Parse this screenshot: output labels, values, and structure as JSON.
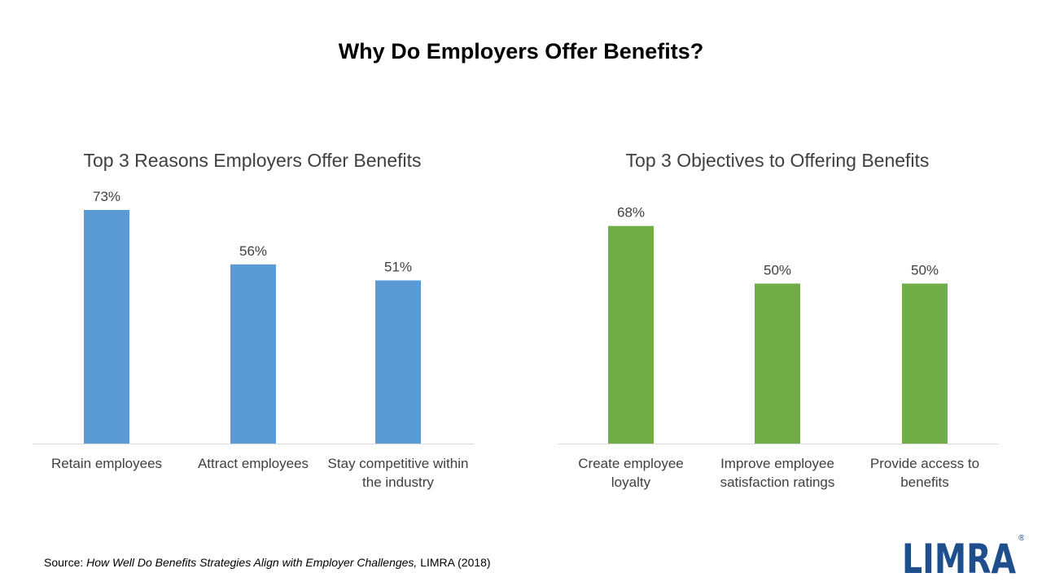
{
  "main_title": "Why Do Employers Offer Benefits?",
  "chart_data": [
    {
      "type": "bar",
      "title": "Top 3 Reasons Employers Offer Benefits",
      "categories": [
        [
          "Retain employees"
        ],
        [
          "Attract employees"
        ],
        [
          "Stay competitive within",
          "the industry"
        ]
      ],
      "values": [
        73,
        56,
        51
      ],
      "value_labels": [
        "73%",
        "56%",
        "51%"
      ],
      "color": "#5b9bd5",
      "ylim": [
        0,
        73
      ],
      "grid": false,
      "legend": "none"
    },
    {
      "type": "bar",
      "title": "Top 3 Objectives to Offering Benefits",
      "categories": [
        [
          "Create employee",
          "loyalty"
        ],
        [
          "Improve employee",
          "satisfaction ratings"
        ],
        [
          "Provide access to",
          "benefits"
        ]
      ],
      "values": [
        68,
        50,
        50
      ],
      "value_labels": [
        "68%",
        "50%",
        "50%"
      ],
      "color": "#70ad47",
      "ylim": [
        0,
        73
      ],
      "grid": false,
      "legend": "none"
    }
  ],
  "source": {
    "prefix": "Source: ",
    "title_italic": "How Well Do Benefits Strategies Align with Employer Challenges,",
    "suffix": " LIMRA (2018)"
  },
  "logo": {
    "text": "LIMRA",
    "registered_mark": "®",
    "color": "#1f4e8c"
  }
}
